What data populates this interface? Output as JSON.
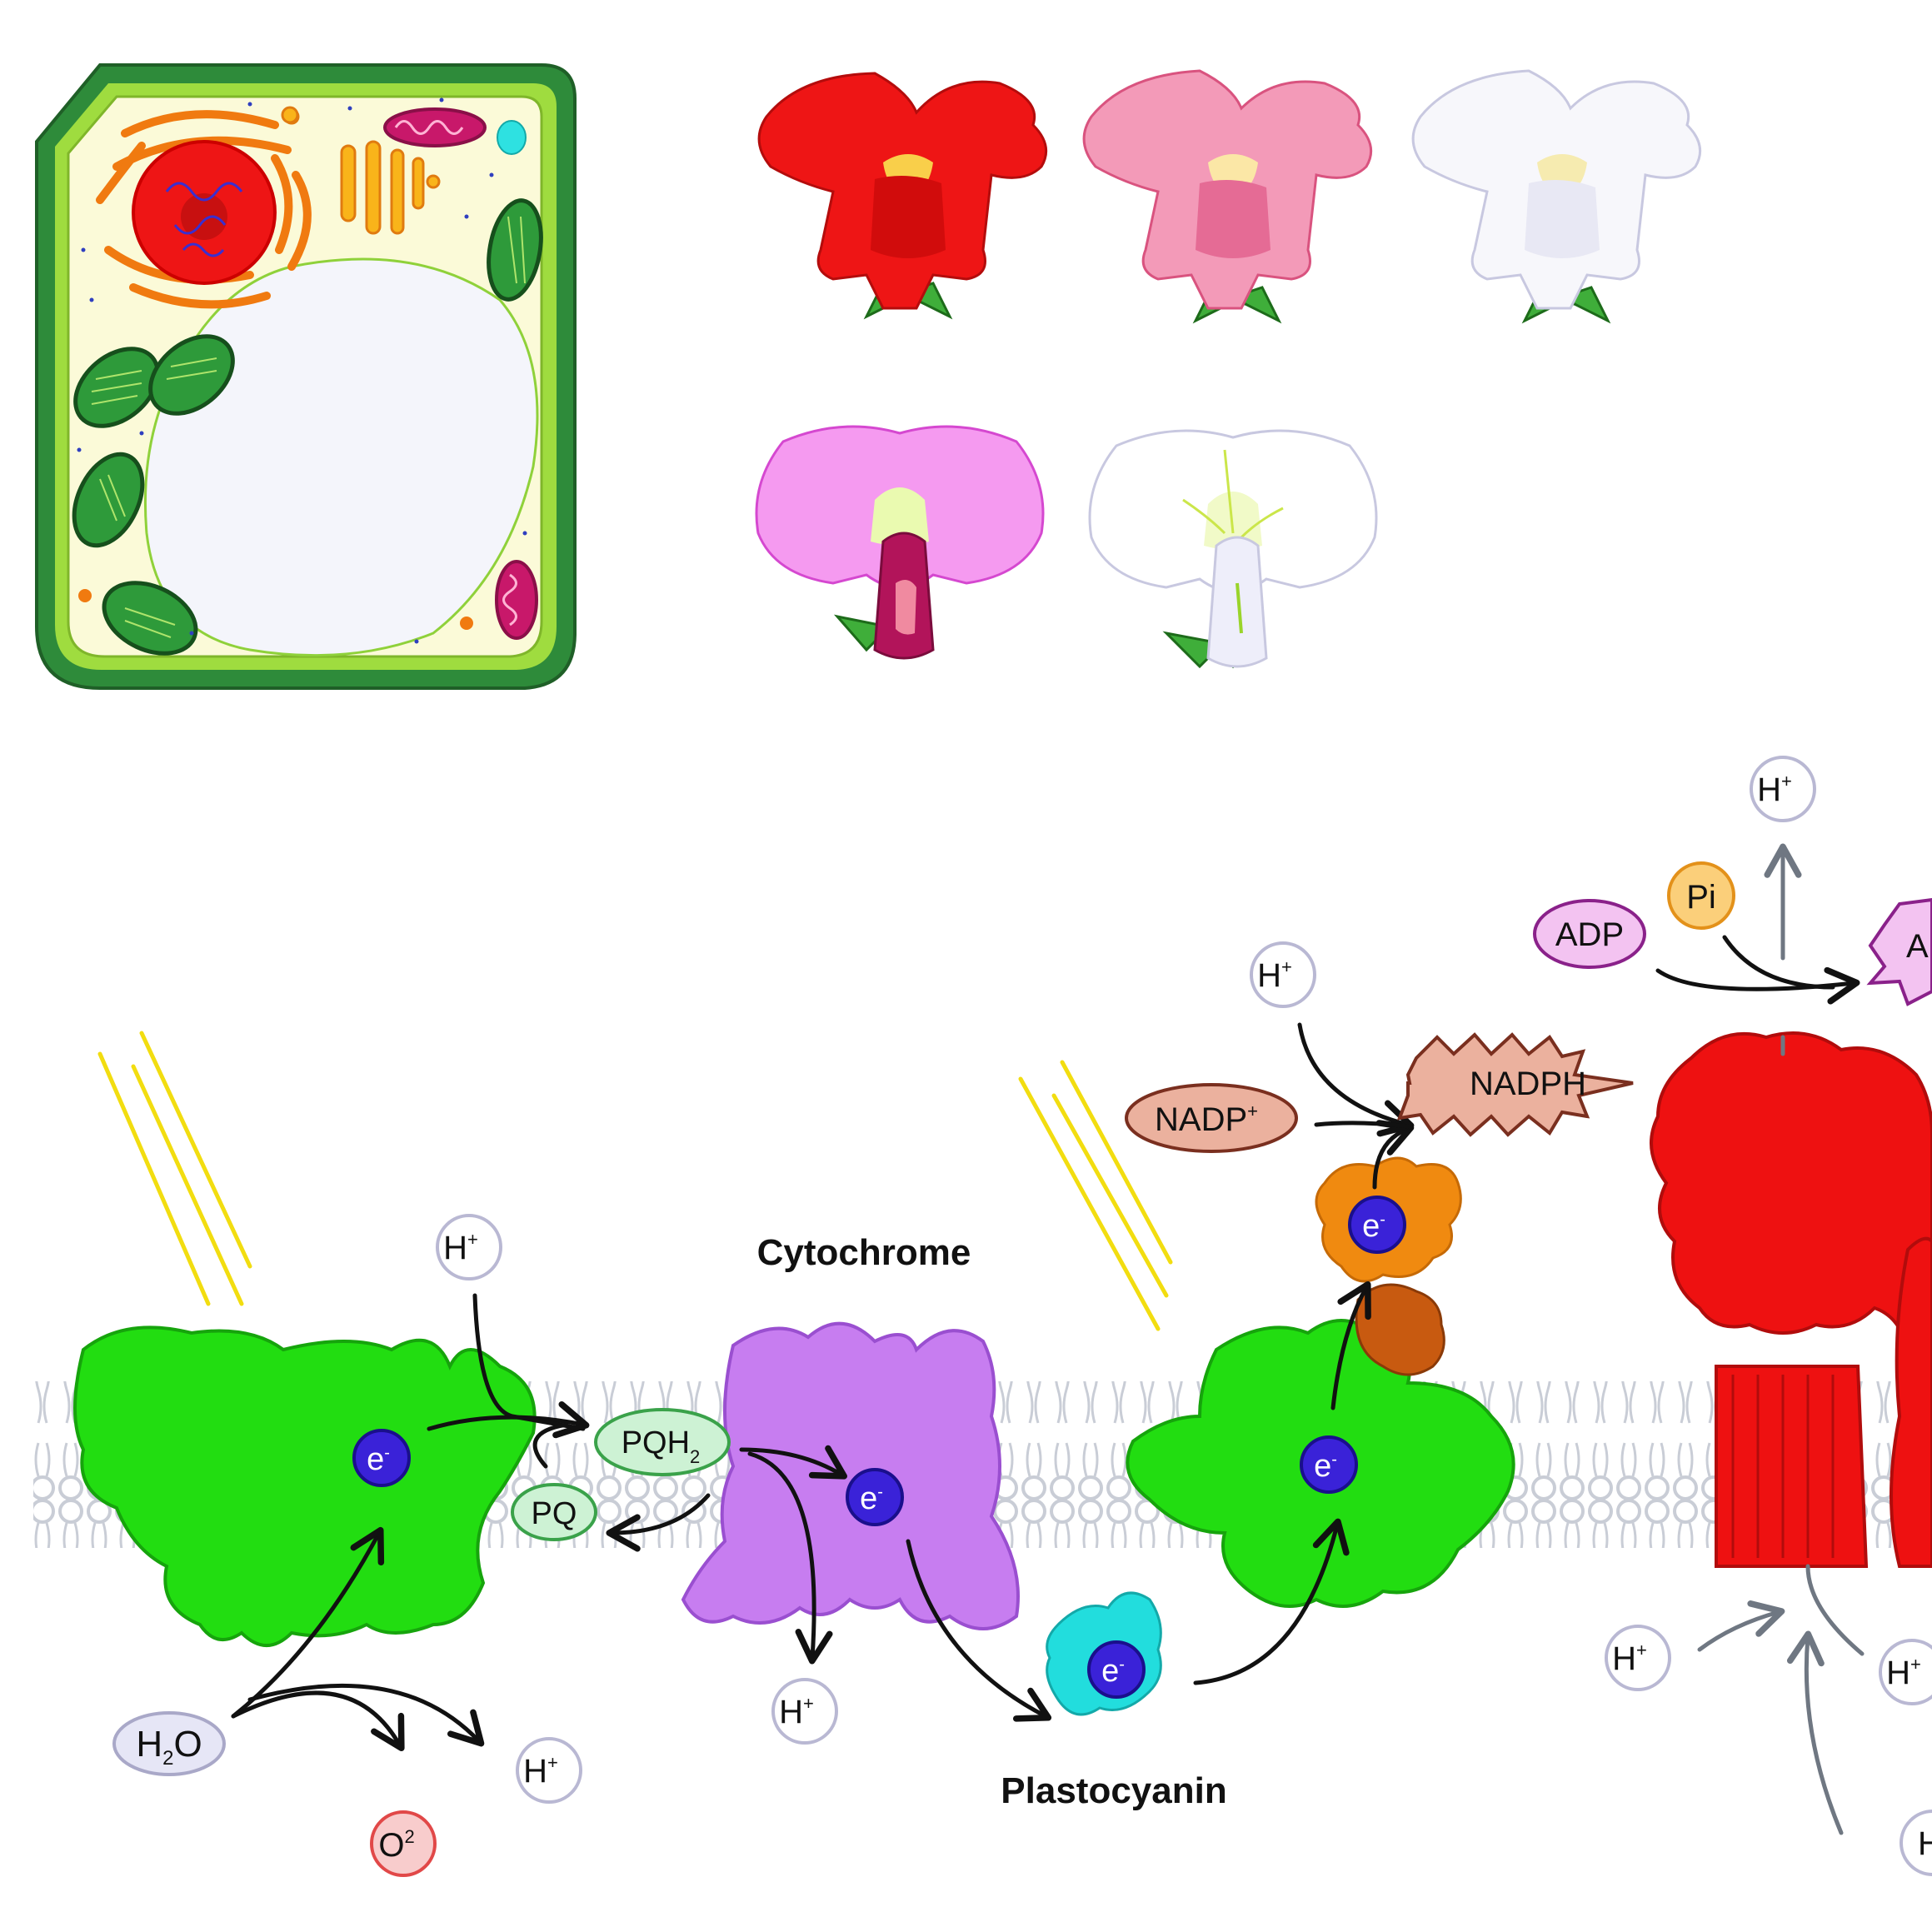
{
  "labels": {
    "cytochrome": "Cytochrome",
    "plastocyanin": "Plastocyanin"
  },
  "molecules": {
    "h_plus": "H",
    "plus_sup": "+",
    "electron": "e",
    "minus_sup": "-",
    "h2o_h": "H",
    "h2o_sub": "2",
    "h2o_o": "O",
    "o2_o": "O",
    "o2_sup": "2",
    "pqh2": "PQH",
    "pqh2_sub": "2",
    "pq": "PQ",
    "nadp": "NADP",
    "nadp_sup": "+",
    "nadph": "NADPH",
    "adp": "ADP",
    "pi": "Pi",
    "atp_partial": "A",
    "h_partial": "H"
  },
  "colors": {
    "photosystem": "#22dd11",
    "cytochrome": "#c77df0",
    "plastocyanin": "#22dddd",
    "ferredoxin": "#f08a10",
    "atp_synthase": "#ee1111",
    "electron": "#3a22d8",
    "light": "#f2dd10",
    "membrane": "#c9cdd6",
    "cell_wall": "#2e8b3a",
    "cytoplasm": "#fbfad8",
    "snapdragon_red": "#ee1515",
    "snapdragon_pink": "#f39ab8",
    "snapdragon_white": "#f7f7fb",
    "pea_pink": "#f59af0",
    "pea_white": "#ffffff"
  },
  "icons": [
    "plant-cell-illustration",
    "snapdragon-flower-icon",
    "sweet-pea-flower-icon",
    "light-ray-icon",
    "arrow-icon"
  ]
}
